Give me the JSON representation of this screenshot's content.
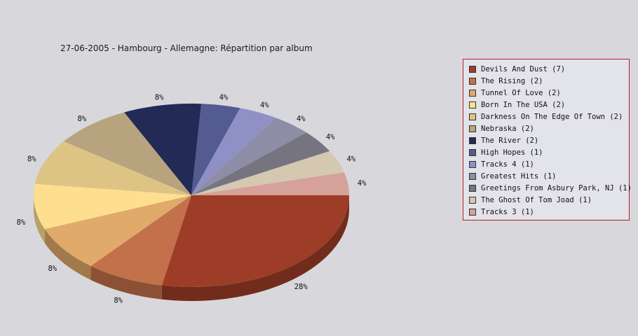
{
  "chart_data": {
    "type": "pie",
    "title": "27-06-2005 - Hambourg - Allemagne:  Répartition par album",
    "slices": [
      {
        "name": "Devils And Dust",
        "count": 7,
        "legend": "Devils And Dust (7)",
        "percent_label": "28%",
        "color": "#9e3d27"
      },
      {
        "name": "The Rising",
        "count": 2,
        "legend": "The Rising (2)",
        "percent_label": "8%",
        "color": "#c2714a"
      },
      {
        "name": "Tunnel Of Love",
        "count": 2,
        "legend": "Tunnel Of Love (2)",
        "percent_label": "8%",
        "color": "#e0aa6a"
      },
      {
        "name": "Born In The USA",
        "count": 2,
        "legend": "Born In The USA (2)",
        "percent_label": "8%",
        "color": "#fedf8f"
      },
      {
        "name": "Darkness On The Edge Of Town",
        "count": 2,
        "legend": "Darkness On The Edge Of Town (2)",
        "percent_label": "8%",
        "color": "#dec484"
      },
      {
        "name": "Nebraska",
        "count": 2,
        "legend": "Nebraska (2)",
        "percent_label": "8%",
        "color": "#b7a47e"
      },
      {
        "name": "The River",
        "count": 2,
        "legend": "The River (2)",
        "percent_label": "8%",
        "color": "#222a55"
      },
      {
        "name": "High Hopes",
        "count": 1,
        "legend": "High Hopes (1)",
        "percent_label": "4%",
        "color": "#545b90"
      },
      {
        "name": "Tracks 4",
        "count": 1,
        "legend": "Tracks 4 (1)",
        "percent_label": "4%",
        "color": "#8e90c6"
      },
      {
        "name": "Greatest Hits",
        "count": 1,
        "legend": "Greatest Hits (1)",
        "percent_label": "4%",
        "color": "#8e8da6"
      },
      {
        "name": "Greetings From Asbury Park, NJ",
        "count": 1,
        "legend": "Greetings From Asbury Park, NJ (1)",
        "percent_label": "4%",
        "color": "#76757f"
      },
      {
        "name": "The Ghost Of Tom Joad",
        "count": 1,
        "legend": "The Ghost Of Tom Joad (1)",
        "percent_label": "4%",
        "color": "#d4c8b0"
      },
      {
        "name": "Tracks 3",
        "count": 1,
        "legend": "Tracks 3 (1)",
        "percent_label": "4%",
        "color": "#d6a09b"
      }
    ],
    "style": "3d-pie",
    "legend_position": "right"
  }
}
